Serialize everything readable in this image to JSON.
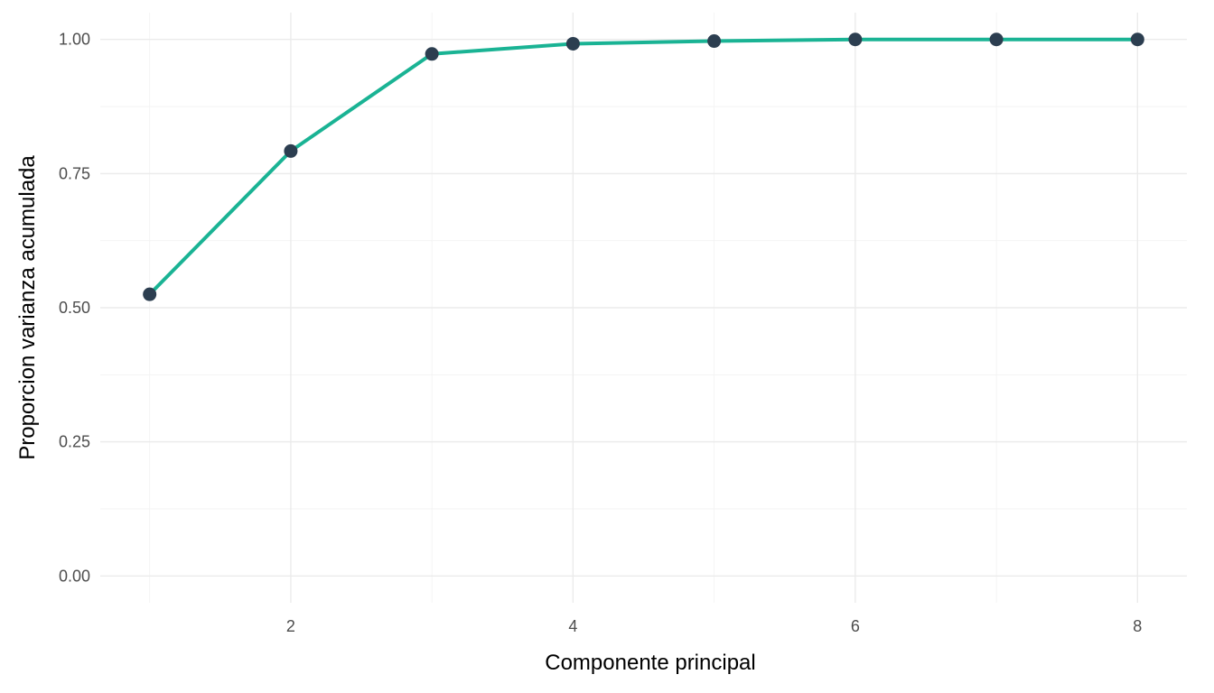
{
  "chart_data": {
    "type": "line",
    "xlabel": "Componente principal",
    "ylabel": "Proporcion varianza acumulada",
    "x": [
      1,
      2,
      3,
      4,
      5,
      6,
      7,
      8
    ],
    "series": [
      {
        "values": [
          0.525,
          0.792,
          0.973,
          0.992,
          0.997,
          1.0,
          1.0,
          1.0
        ]
      }
    ],
    "xlim": [
      0.65,
      8.35
    ],
    "ylim": [
      -0.05,
      1.05
    ],
    "x_ticks": [
      2,
      4,
      6,
      8
    ],
    "x_tick_labels": [
      "2",
      "4",
      "6",
      "8"
    ],
    "y_ticks": [
      0,
      0.25,
      0.5,
      0.75,
      1.0
    ],
    "y_tick_labels": [
      "0.00",
      "0.25",
      "0.50",
      "0.75",
      "1.00"
    ],
    "grid": true,
    "legend": "none",
    "colors": {
      "line": "#1ab394",
      "point": "#2c3e50",
      "grid": "#ebebeb",
      "background": "#ffffff"
    }
  }
}
